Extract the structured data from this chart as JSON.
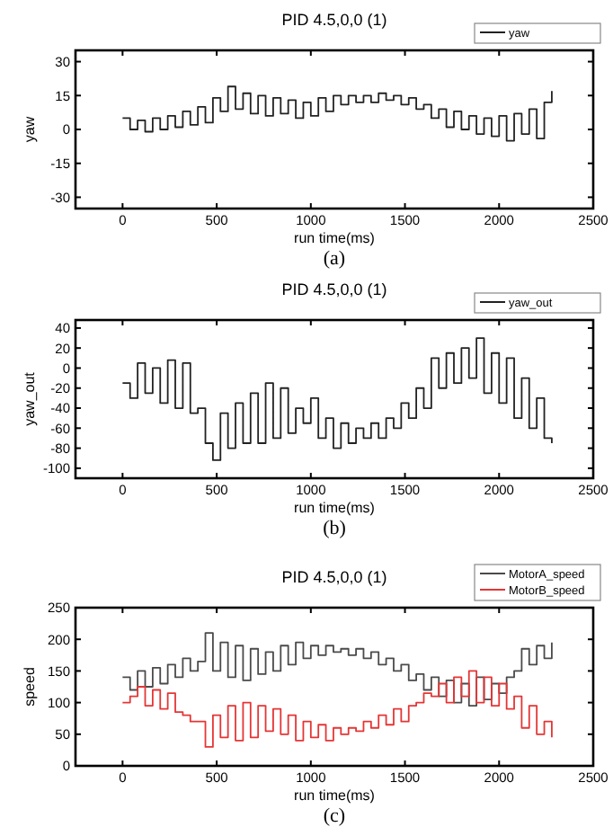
{
  "chart_data": [
    {
      "type": "step",
      "title": "PID 4.5,0,0 (1)",
      "xlabel": "run time(ms)",
      "ylabel": "yaw",
      "legend": "top right",
      "line_style": "solid",
      "annotations": [
        "(a)"
      ],
      "xlim": [
        -250,
        2500
      ],
      "xticks": [
        0,
        500,
        1000,
        1500,
        2000,
        2500
      ],
      "ylim": [
        -35,
        35
      ],
      "yticks": [
        -30,
        -15,
        0,
        15,
        30
      ],
      "x": [
        0,
        40,
        80,
        120,
        160,
        200,
        240,
        280,
        320,
        360,
        400,
        440,
        480,
        520,
        560,
        600,
        640,
        680,
        720,
        760,
        800,
        840,
        880,
        920,
        960,
        1000,
        1040,
        1080,
        1120,
        1160,
        1200,
        1240,
        1280,
        1320,
        1360,
        1400,
        1440,
        1480,
        1520,
        1560,
        1600,
        1640,
        1680,
        1720,
        1760,
        1800,
        1840,
        1880,
        1920,
        1960,
        2000,
        2040,
        2080,
        2120,
        2160,
        2200,
        2240,
        2280
      ],
      "series": [
        {
          "name": "yaw",
          "color": "#222222",
          "values": [
            5,
            0,
            4,
            -1,
            5,
            0,
            6,
            1,
            8,
            2,
            10,
            3,
            14,
            8,
            19,
            9,
            16,
            7,
            15,
            6,
            14,
            7,
            13,
            5,
            12,
            6,
            14,
            8,
            15,
            11,
            15,
            12,
            15,
            12,
            16,
            13,
            15,
            11,
            14,
            9,
            11,
            5,
            9,
            1,
            8,
            0,
            6,
            -2,
            5,
            -3,
            6,
            -5,
            7,
            -2,
            9,
            -4,
            12,
            17
          ]
        }
      ]
    },
    {
      "type": "step",
      "title": "PID 4.5,0,0 (1)",
      "xlabel": "run time(ms)",
      "ylabel": "yaw_out",
      "legend": "top right",
      "line_style": "solid",
      "annotations": [
        "(b)"
      ],
      "xlim": [
        -250,
        2500
      ],
      "xticks": [
        0,
        500,
        1000,
        1500,
        2000,
        2500
      ],
      "ylim": [
        -110,
        48
      ],
      "yticks": [
        -100,
        -80,
        -60,
        -40,
        -20,
        0,
        20,
        40
      ],
      "x": [
        0,
        40,
        80,
        120,
        160,
        200,
        240,
        280,
        320,
        360,
        400,
        440,
        480,
        520,
        560,
        600,
        640,
        680,
        720,
        760,
        800,
        840,
        880,
        920,
        960,
        1000,
        1040,
        1080,
        1120,
        1160,
        1200,
        1240,
        1280,
        1320,
        1360,
        1400,
        1440,
        1480,
        1520,
        1560,
        1600,
        1640,
        1680,
        1720,
        1760,
        1800,
        1840,
        1880,
        1920,
        1960,
        2000,
        2040,
        2080,
        2120,
        2160,
        2200,
        2240,
        2280
      ],
      "series": [
        {
          "name": "yaw_out",
          "color": "#222222",
          "values": [
            -15,
            -30,
            5,
            -25,
            0,
            -35,
            8,
            -40,
            5,
            -45,
            -40,
            -75,
            -92,
            -45,
            -80,
            -35,
            -75,
            -25,
            -75,
            -15,
            -70,
            -20,
            -65,
            -40,
            -55,
            -30,
            -70,
            -50,
            -80,
            -55,
            -75,
            -60,
            -70,
            -55,
            -70,
            -50,
            -60,
            -35,
            -50,
            -20,
            -40,
            10,
            -20,
            15,
            -15,
            20,
            -10,
            30,
            -25,
            15,
            -35,
            10,
            -50,
            -10,
            -60,
            -30,
            -70,
            -75
          ]
        }
      ]
    },
    {
      "type": "step",
      "title": "PID 4.5,0,0 (1)",
      "xlabel": "run time(ms)",
      "ylabel": "speed",
      "legend": "top right",
      "line_style": "solid",
      "annotations": [
        "(c)"
      ],
      "xlim": [
        -250,
        2500
      ],
      "xticks": [
        0,
        500,
        1000,
        1500,
        2000,
        2500
      ],
      "ylim": [
        0,
        250
      ],
      "yticks": [
        0,
        50,
        100,
        150,
        200,
        250
      ],
      "x": [
        0,
        40,
        80,
        120,
        160,
        200,
        240,
        280,
        320,
        360,
        400,
        440,
        480,
        520,
        560,
        600,
        640,
        680,
        720,
        760,
        800,
        840,
        880,
        920,
        960,
        1000,
        1040,
        1080,
        1120,
        1160,
        1200,
        1240,
        1280,
        1320,
        1360,
        1400,
        1440,
        1480,
        1520,
        1560,
        1600,
        1640,
        1680,
        1720,
        1760,
        1800,
        1840,
        1880,
        1920,
        1960,
        2000,
        2040,
        2080,
        2120,
        2160,
        2200,
        2240,
        2280
      ],
      "series": [
        {
          "name": "MotorA_speed",
          "color": "#4a4a4a",
          "values": [
            140,
            120,
            150,
            125,
            155,
            130,
            160,
            140,
            170,
            150,
            165,
            210,
            150,
            195,
            140,
            190,
            135,
            185,
            145,
            180,
            150,
            190,
            160,
            195,
            170,
            190,
            175,
            190,
            180,
            185,
            175,
            185,
            170,
            180,
            160,
            170,
            150,
            160,
            135,
            145,
            120,
            140,
            110,
            135,
            100,
            130,
            95,
            140,
            105,
            130,
            115,
            140,
            150,
            185,
            160,
            190,
            170,
            195
          ]
        },
        {
          "name": "MotorB_speed",
          "color": "#e53535",
          "values": [
            100,
            110,
            125,
            95,
            120,
            90,
            115,
            85,
            80,
            70,
            70,
            30,
            80,
            45,
            95,
            40,
            100,
            45,
            95,
            55,
            90,
            50,
            80,
            40,
            70,
            45,
            65,
            40,
            60,
            50,
            60,
            55,
            70,
            60,
            80,
            65,
            90,
            70,
            95,
            100,
            115,
            110,
            130,
            100,
            140,
            110,
            150,
            100,
            140,
            95,
            130,
            90,
            110,
            60,
            95,
            50,
            70,
            45
          ]
        }
      ]
    }
  ]
}
